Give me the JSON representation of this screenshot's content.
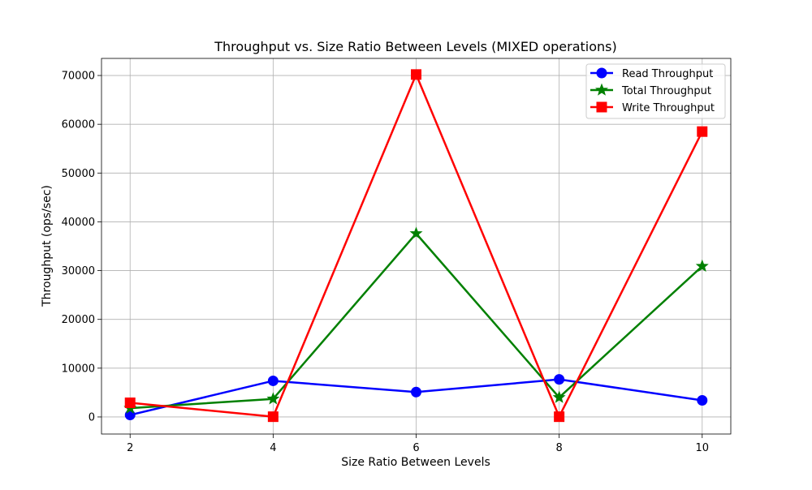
{
  "chart_data": {
    "type": "line",
    "title": "Throughput vs. Size Ratio Between Levels (MIXED operations)",
    "xlabel": "Size Ratio Between Levels",
    "ylabel": "Throughput (ops/sec)",
    "x": [
      2,
      4,
      6,
      8,
      10
    ],
    "xticks": [
      "2",
      "4",
      "6",
      "8",
      "10"
    ],
    "yticks": [
      "0",
      "10000",
      "20000",
      "30000",
      "40000",
      "50000",
      "60000",
      "70000"
    ],
    "xlim": [
      1.6,
      10.4
    ],
    "ylim": [
      -3500,
      73500
    ],
    "grid": true,
    "legend_position": "upper-right",
    "series": [
      {
        "name": "Read Throughput",
        "color": "#0000ff",
        "marker": "circle",
        "values": [
          400,
          7400,
          5100,
          7700,
          3400
        ]
      },
      {
        "name": "Total Throughput",
        "color": "#008000",
        "marker": "star",
        "values": [
          1800,
          3700,
          37600,
          4000,
          30900
        ]
      },
      {
        "name": "Write Throughput",
        "color": "#ff0000",
        "marker": "square",
        "values": [
          2900,
          50,
          70200,
          50,
          58500
        ]
      }
    ]
  }
}
